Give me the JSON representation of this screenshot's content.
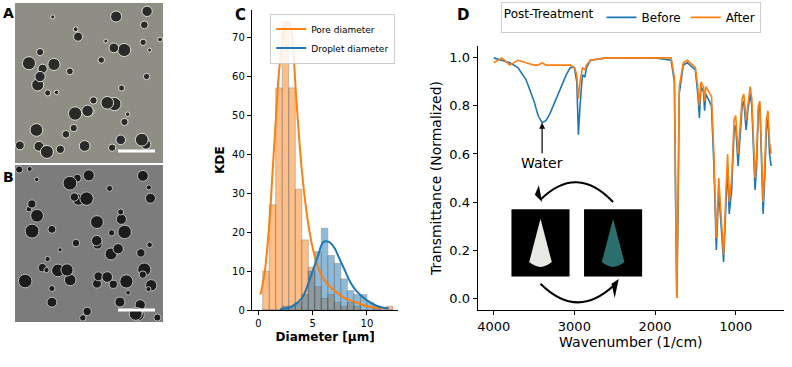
{
  "chart_data": [
    {
      "type": "histogram",
      "annotations": [
        {
          "text": "C"
        }
      ],
      "x_label": "Diameter [µm]",
      "y_label": "KDE",
      "bins": [
        0.4,
        1.0,
        1.6,
        2.2,
        2.8,
        3.4,
        4.0,
        4.6,
        5.2,
        5.8,
        6.4,
        7.0,
        7.6,
        8.2,
        8.8,
        9.4,
        10.0,
        10.6,
        11.2,
        11.8,
        12.4
      ],
      "series": [
        {
          "name": "Pore diameter",
          "color": "#ff7f0e",
          "values": [
            10,
            27,
            57,
            74,
            57,
            31,
            18,
            11,
            6,
            3,
            4,
            2,
            1,
            2,
            1,
            0,
            0,
            1,
            0,
            1
          ],
          "kde": {
            "x": [
              0.2,
              0.6,
              1.0,
              1.5,
              2.0,
              2.5,
              2.8,
              3.1,
              3.5,
              4.0,
              4.5,
              5.0,
              5.5,
              6.0,
              7.0,
              8.0,
              9.0,
              10.0,
              11.0,
              12.0
            ],
            "values": [
              4,
              10,
              22,
              44,
              64,
              73,
              74,
              70,
              54,
              36,
              24,
              16,
              11,
              8,
              5,
              3,
              2,
              1,
              0.6,
              0.4
            ]
          }
        },
        {
          "name": "Droplet diameter",
          "color": "#1f77b4",
          "values": [
            0,
            0,
            0,
            1,
            1,
            2,
            4,
            10,
            15,
            21,
            14,
            12,
            8,
            5,
            4,
            4,
            2,
            1,
            0,
            0
          ],
          "kde": {
            "x": [
              2.0,
              3.0,
              4.0,
              4.5,
              5.0,
              5.5,
              6.0,
              6.5,
              7.0,
              7.5,
              8.0,
              8.5,
              9.0,
              10.0,
              11.0,
              12.0
            ],
            "values": [
              0.2,
              0.8,
              3,
              6,
              10,
              14,
              17.5,
              17.5,
              16,
              13,
              10,
              7,
              5,
              2.5,
              1,
              0.4
            ]
          }
        }
      ],
      "xlim": [
        -0.6,
        12.9
      ],
      "xticks": [
        0,
        5,
        10
      ],
      "ylim": [
        0,
        77
      ],
      "yticks": [
        0,
        10,
        20,
        30,
        40,
        50,
        60,
        70
      ],
      "grid": false,
      "legend": "upper right"
    },
    {
      "type": "line",
      "annotations": [
        {
          "text": "D"
        },
        {
          "text": "Water",
          "x": 3400,
          "y": 0.73
        }
      ],
      "x_label": "Wavenumber (1/cm)",
      "y_label": "Transmittance (Normalized)",
      "legend_title": "Post-Treatment",
      "x": [
        4000,
        3900,
        3800,
        3700,
        3600,
        3500,
        3450,
        3400,
        3350,
        3300,
        3200,
        3100,
        3050,
        3000,
        2970,
        2950,
        2930,
        2900,
        2870,
        2850,
        2800,
        2600,
        2400,
        2200,
        2000,
        1800,
        1760,
        1745,
        1730,
        1715,
        1700,
        1650,
        1600,
        1500,
        1470,
        1450,
        1430,
        1400,
        1385,
        1370,
        1300,
        1270,
        1240,
        1210,
        1180,
        1150,
        1120,
        1100,
        1080,
        1050,
        1020,
        1000,
        970,
        950,
        920,
        900,
        870,
        850,
        820,
        800,
        780,
        760,
        740,
        720,
        700,
        680,
        660,
        640,
        620,
        600,
        580,
        560
      ],
      "series": [
        {
          "name": "Before",
          "color": "#1f77b4",
          "values": [
            1.0,
            0.99,
            0.98,
            0.96,
            0.91,
            0.82,
            0.76,
            0.73,
            0.74,
            0.77,
            0.85,
            0.93,
            0.96,
            0.96,
            0.9,
            0.68,
            0.8,
            0.93,
            0.92,
            0.96,
            0.99,
            1.0,
            1.0,
            1.0,
            1.0,
            0.99,
            0.9,
            0.4,
            0.0,
            0.35,
            0.85,
            0.97,
            0.98,
            0.95,
            0.85,
            0.75,
            0.88,
            0.86,
            0.78,
            0.85,
            0.8,
            0.55,
            0.2,
            0.45,
            0.3,
            0.15,
            0.4,
            0.55,
            0.35,
            0.45,
            0.7,
            0.72,
            0.55,
            0.65,
            0.8,
            0.82,
            0.7,
            0.78,
            0.85,
            0.8,
            0.6,
            0.45,
            0.55,
            0.78,
            0.8,
            0.55,
            0.35,
            0.5,
            0.7,
            0.75,
            0.6,
            0.55
          ]
        },
        {
          "name": "After",
          "color": "#ff7f0e",
          "values": [
            0.98,
            1.0,
            0.97,
            0.99,
            0.98,
            0.97,
            0.97,
            0.98,
            0.97,
            0.97,
            0.97,
            0.97,
            0.97,
            0.96,
            0.93,
            0.83,
            0.9,
            0.96,
            0.95,
            0.97,
            0.99,
            1.0,
            1.0,
            1.0,
            1.0,
            1.0,
            0.92,
            0.45,
            0.0,
            0.4,
            0.88,
            0.98,
            0.99,
            0.96,
            0.88,
            0.8,
            0.9,
            0.88,
            0.82,
            0.88,
            0.84,
            0.6,
            0.25,
            0.5,
            0.35,
            0.18,
            0.45,
            0.6,
            0.4,
            0.5,
            0.74,
            0.76,
            0.6,
            0.7,
            0.83,
            0.85,
            0.74,
            0.8,
            0.88,
            0.83,
            0.65,
            0.5,
            0.6,
            0.8,
            0.82,
            0.6,
            0.4,
            0.55,
            0.74,
            0.78,
            0.65,
            0.6
          ]
        }
      ],
      "xlim": [
        4200,
        400
      ],
      "xticks": [
        4000,
        3000,
        2000,
        1000
      ],
      "ylim": [
        -0.05,
        1.05
      ],
      "yticks": [
        {
          "value": 0,
          "label": "0.0"
        },
        {
          "value": 0.2,
          "label": "0.2"
        },
        {
          "value": 0.4,
          "label": "0.4"
        },
        {
          "value": 0.6,
          "label": "0.6"
        },
        {
          "value": 0.8,
          "label": "0.8"
        },
        {
          "value": 1,
          "label": "1.0"
        }
      ],
      "grid": false,
      "legend": "top"
    }
  ],
  "images": [
    {
      "label": "A"
    },
    {
      "label": "B"
    }
  ]
}
